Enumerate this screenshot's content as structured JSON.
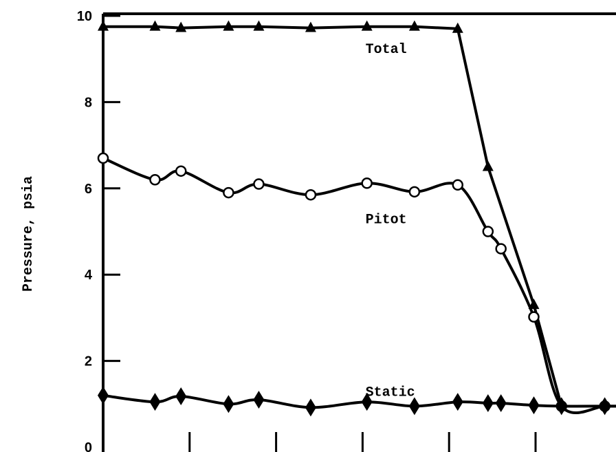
{
  "chart_data": {
    "type": "line",
    "ylabel": "Pressure, psia",
    "xlabel": "",
    "title": "",
    "xlim": [
      0,
      6
    ],
    "ylim": [
      0,
      10
    ],
    "y_ticks": [
      0,
      2,
      4,
      6,
      8,
      10
    ],
    "y_tick_labels": [
      "0",
      "2",
      "4",
      "6",
      "8",
      "10"
    ],
    "x_ticks": [
      1,
      2,
      3,
      4,
      5
    ],
    "grid": false,
    "series": [
      {
        "name": "Total",
        "marker": "triangle",
        "x": [
          0.0,
          0.6,
          0.9,
          1.45,
          1.8,
          2.4,
          3.05,
          3.6,
          4.1,
          4.45,
          4.98
        ],
        "y": [
          9.75,
          9.75,
          9.72,
          9.75,
          9.75,
          9.72,
          9.75,
          9.75,
          9.7,
          6.5,
          3.3
        ]
      },
      {
        "name": "Pitot",
        "marker": "circle",
        "x": [
          0.0,
          0.6,
          0.9,
          1.45,
          1.8,
          2.4,
          3.05,
          3.6,
          4.1,
          4.45,
          4.6,
          4.98,
          5.3,
          5.8,
          6.0
        ],
        "y": [
          6.7,
          6.2,
          6.4,
          5.9,
          6.1,
          5.85,
          6.12,
          5.92,
          6.08,
          5.0,
          4.6,
          3.02,
          0.95,
          0.95,
          0.95
        ]
      },
      {
        "name": "Static",
        "marker": "diamond",
        "x": [
          0.0,
          0.6,
          0.9,
          1.45,
          1.8,
          2.4,
          3.05,
          3.6,
          4.1,
          4.45,
          4.6,
          4.98,
          5.3,
          5.8,
          6.0
        ],
        "y": [
          1.2,
          1.05,
          1.18,
          1.0,
          1.1,
          0.92,
          1.05,
          0.95,
          1.05,
          1.02,
          1.02,
          0.97,
          0.95,
          0.95,
          0.95
        ]
      }
    ],
    "series_label_positions": [
      {
        "name": "Total",
        "x": 2.0,
        "y": 9.25
      },
      {
        "name": "Pitot",
        "x": 2.0,
        "y": 5.3
      },
      {
        "name": "Static",
        "x": 2.0,
        "y": 1.3
      }
    ]
  }
}
